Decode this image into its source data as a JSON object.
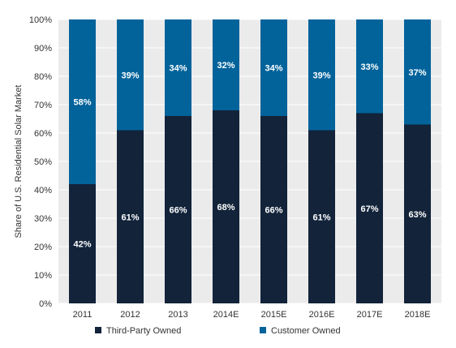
{
  "chart_data": {
    "type": "bar",
    "stacked": true,
    "categories": [
      "2011",
      "2012",
      "2013",
      "2014E",
      "2015E",
      "2016E",
      "2017E",
      "2018E"
    ],
    "series": [
      {
        "name": "Third-Party Owned",
        "values": [
          42,
          61,
          66,
          68,
          66,
          61,
          67,
          63
        ],
        "color": "#12233a"
      },
      {
        "name": "Customer Owned",
        "values": [
          58,
          39,
          34,
          32,
          34,
          39,
          33,
          37
        ],
        "color": "#02639b"
      }
    ],
    "ylabel": "Share of U.S. Residential Solar Market",
    "xlabel": "",
    "ylim": [
      0,
      100
    ],
    "yticks": [
      "0%",
      "10%",
      "20%",
      "30%",
      "40%",
      "50%",
      "60%",
      "70%",
      "80%",
      "90%",
      "100%"
    ],
    "value_suffix": "%",
    "grid": true,
    "legend_position": "bottom",
    "background_color": "#ebebeb"
  }
}
